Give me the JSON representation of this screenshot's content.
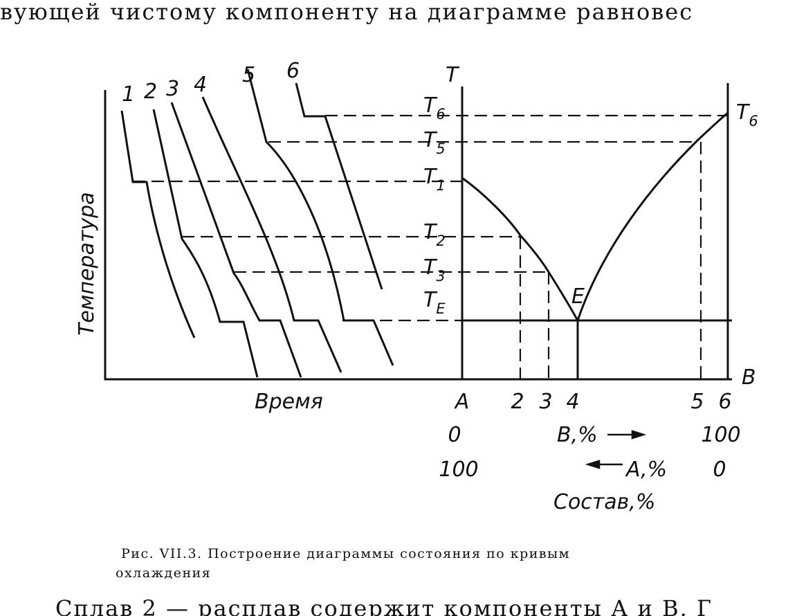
{
  "page": {
    "top_text": "вующей чистому компоненту на диаграмме равновес",
    "curve_numbers": [
      "1",
      "2",
      "3",
      "4",
      "5",
      "6"
    ],
    "axis_t": "T",
    "t_labels": [
      {
        "text": "T",
        "sub": "6"
      },
      {
        "text": "T",
        "sub": "5"
      },
      {
        "text": "T",
        "sub": "1"
      },
      {
        "text": "T",
        "sub": "2"
      },
      {
        "text": "T",
        "sub": "3"
      },
      {
        "text": "T",
        "sub": "E"
      }
    ],
    "eutectic": "E",
    "right_t": {
      "text": "T",
      "sub": "6"
    },
    "axis_b": "B",
    "y_label": "Температура",
    "x_label": "Время",
    "composition_ticks": [
      "A",
      "2",
      "3",
      "4",
      "5",
      "6"
    ],
    "b_row": {
      "left": "0",
      "label": "B,%",
      "right": "100"
    },
    "a_row": {
      "left": "100",
      "label": "A,%",
      "right": "0"
    },
    "composition_label": "Состав,%",
    "caption": [
      "Рис. VII.3. Построение диаграммы состояния по кривым",
      "охлаждения"
    ],
    "bottom_text": "Сплав 2 — расплав содержит компоненты А и В. Г"
  }
}
